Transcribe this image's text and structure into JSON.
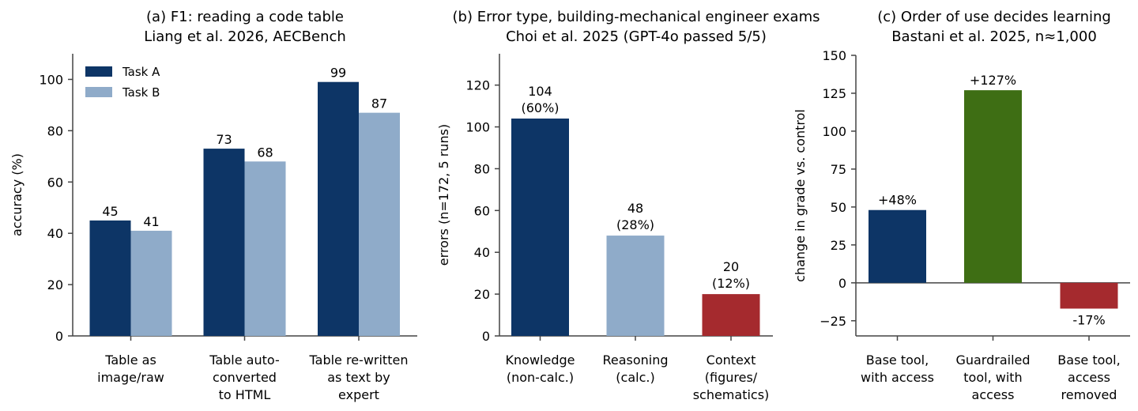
{
  "colors": {
    "navy": "#0d3566",
    "lightblue": "#8fabc9",
    "red": "#a52a2e",
    "green": "#3e6e14",
    "axis": "#444444"
  },
  "chart_data": [
    {
      "type": "bar",
      "title": [
        "(a) F1: reading a code table",
        "Liang et al. 2026, AECBench"
      ],
      "xlabel": "",
      "ylabel": "accuracy (%)",
      "ylim": [
        0,
        110
      ],
      "yticks": [
        0,
        20,
        40,
        60,
        80,
        100
      ],
      "categories": [
        [
          "Table as",
          "image/raw"
        ],
        [
          "Table auto-",
          "converted",
          "to HTML"
        ],
        [
          "Table re-written",
          "as text by",
          "expert"
        ]
      ],
      "series": [
        {
          "name": "Task A",
          "values": [
            45,
            73,
            99
          ],
          "labels": [
            "45",
            "73",
            "99"
          ],
          "color": "navy"
        },
        {
          "name": "Task B",
          "values": [
            41,
            68,
            87
          ],
          "labels": [
            "41",
            "68",
            "87"
          ],
          "color": "lightblue"
        }
      ],
      "legend": "top-left",
      "grid": false
    },
    {
      "type": "bar",
      "title": [
        "(b) Error type, building-mechanical engineer exams",
        "Choi et al. 2025 (GPT-4o passed 5/5)"
      ],
      "xlabel": "",
      "ylabel": "errors (n=172, 5 runs)",
      "ylim": [
        0,
        135
      ],
      "yticks": [
        0,
        20,
        40,
        60,
        80,
        100,
        120
      ],
      "categories": [
        [
          "Knowledge",
          "(non-calc.)"
        ],
        [
          "Reasoning",
          "(calc.)"
        ],
        [
          "Context",
          "(figures/",
          "schematics)"
        ]
      ],
      "values": [
        104,
        48,
        20
      ],
      "labels": [
        [
          "104",
          "(60%)"
        ],
        [
          "48",
          "(28%)"
        ],
        [
          "20",
          "(12%)"
        ]
      ],
      "colors": [
        "navy",
        "lightblue",
        "red"
      ],
      "grid": false
    },
    {
      "type": "bar",
      "title": [
        "(c) Order of use decides learning",
        "Bastani et al. 2025, n≈1,000"
      ],
      "xlabel": "",
      "ylabel": "change in grade vs. control",
      "ylim": [
        -35,
        150
      ],
      "yticks": [
        -25,
        0,
        25,
        50,
        75,
        100,
        125,
        150
      ],
      "yticklabels": [
        "−25",
        "0",
        "25",
        "50",
        "75",
        "100",
        "125",
        "150"
      ],
      "categories": [
        [
          "Base tool,",
          "with access"
        ],
        [
          "Guardrailed",
          "tool, with",
          "access"
        ],
        [
          "Base tool,",
          "access",
          "removed"
        ]
      ],
      "values": [
        48,
        127,
        -17
      ],
      "labels": [
        "+48%",
        "+127%",
        "-17%"
      ],
      "colors": [
        "navy",
        "green",
        "red"
      ],
      "zero_line": true,
      "grid": false
    }
  ]
}
